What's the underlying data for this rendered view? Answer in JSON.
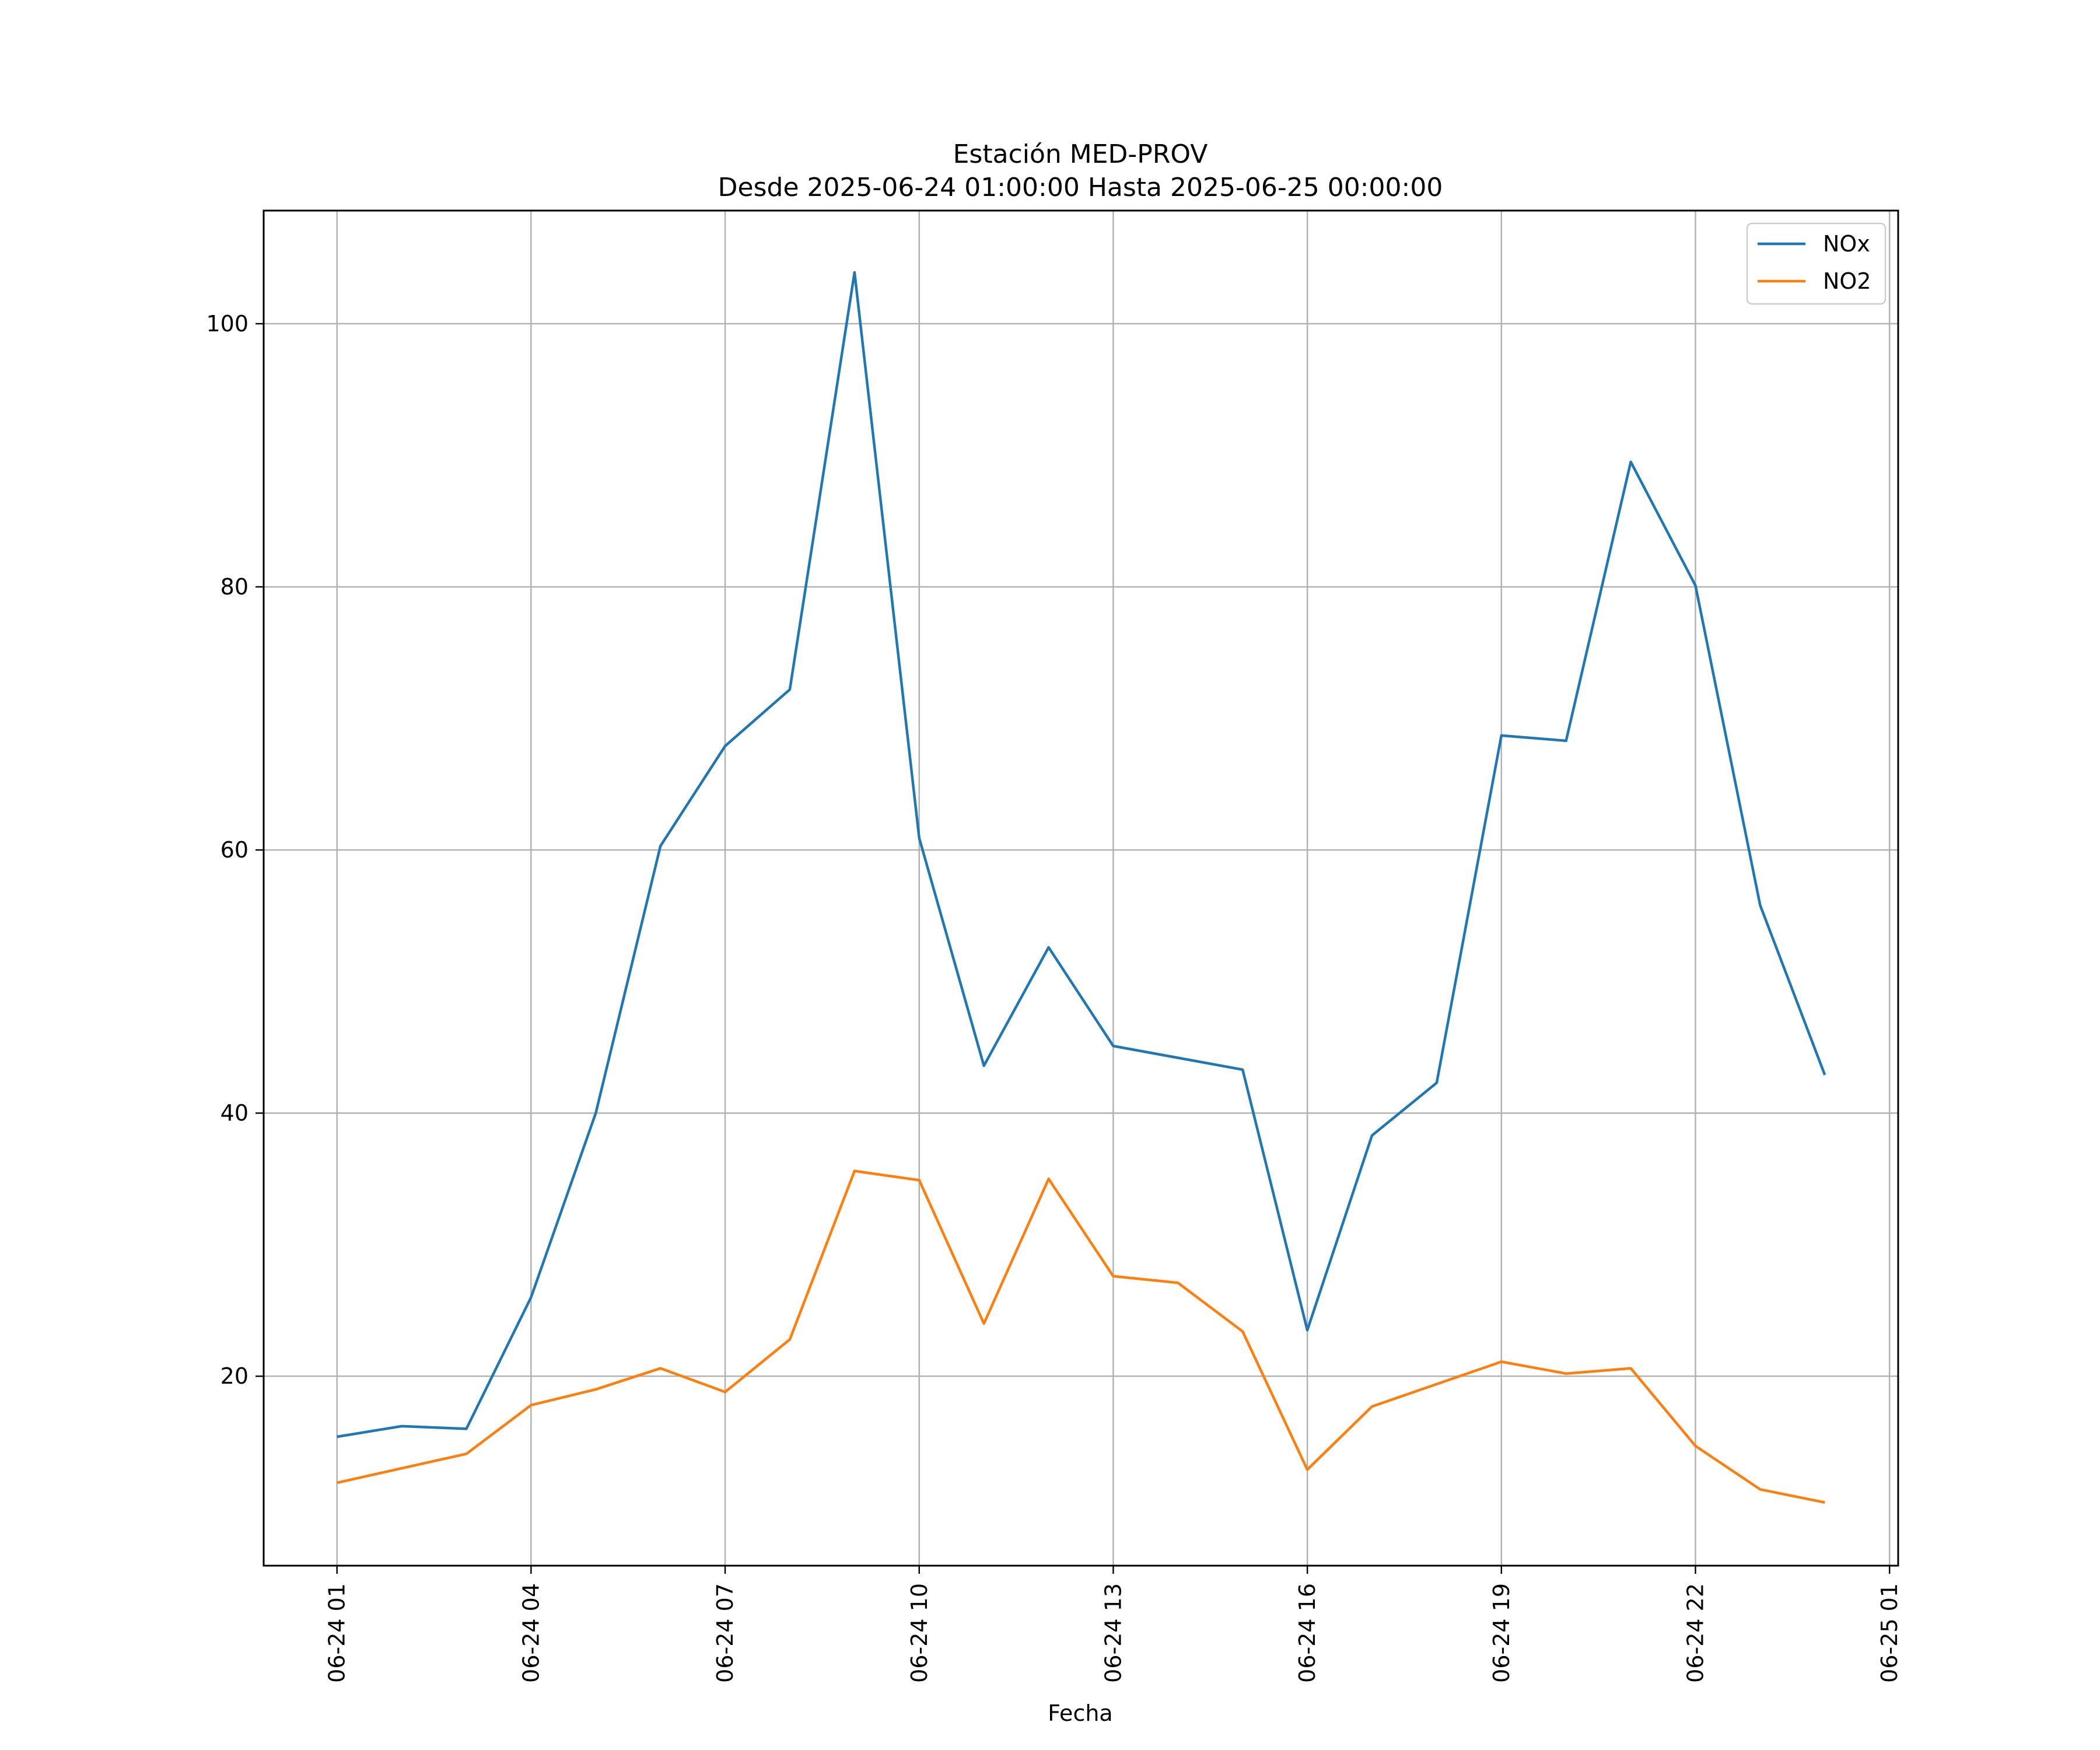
{
  "chart_data": {
    "type": "line",
    "title": "Estación MED-PROV",
    "subtitle": "Desde 2025-06-24 01:00:00 Hasta 2025-06-25 00:00:00",
    "xlabel": "Fecha",
    "ylabel": "",
    "x": [
      "2025-06-24 01:00",
      "2025-06-24 02:00",
      "2025-06-24 03:00",
      "2025-06-24 04:00",
      "2025-06-24 05:00",
      "2025-06-24 06:00",
      "2025-06-24 07:00",
      "2025-06-24 08:00",
      "2025-06-24 09:00",
      "2025-06-24 10:00",
      "2025-06-24 11:00",
      "2025-06-24 12:00",
      "2025-06-24 13:00",
      "2025-06-24 14:00",
      "2025-06-24 15:00",
      "2025-06-24 16:00",
      "2025-06-24 17:00",
      "2025-06-24 18:00",
      "2025-06-24 19:00",
      "2025-06-24 20:00",
      "2025-06-24 21:00",
      "2025-06-24 22:00",
      "2025-06-24 23:00",
      "2025-06-25 00:00"
    ],
    "x_tick_labels": [
      "06-24 01",
      "06-24 04",
      "06-24 07",
      "06-24 10",
      "06-24 13",
      "06-24 16",
      "06-24 19",
      "06-24 22",
      "06-25 01"
    ],
    "x_tick_values": [
      "2025-06-24 01:00",
      "2025-06-24 04:00",
      "2025-06-24 07:00",
      "2025-06-24 10:00",
      "2025-06-24 13:00",
      "2025-06-24 16:00",
      "2025-06-24 19:00",
      "2025-06-24 22:00",
      "2025-06-25 01:00"
    ],
    "xlim": [
      "2025-06-23 23:52",
      "2025-06-25 01:08"
    ],
    "y_ticks": [
      20,
      40,
      60,
      80,
      100
    ],
    "y_tick_labels": [
      "20",
      "40",
      "60",
      "80",
      "100"
    ],
    "ylim": [
      5.6,
      108.6
    ],
    "grid": true,
    "legend_position": "top-right",
    "series": [
      {
        "name": "NOx",
        "color": "#1f77b4",
        "values": [
          15.4,
          16.2,
          16.0,
          26.0,
          40.0,
          60.3,
          67.9,
          72.2,
          103.9,
          60.9,
          43.6,
          52.6,
          45.1,
          44.2,
          43.3,
          23.5,
          38.3,
          42.3,
          68.7,
          68.3,
          89.5,
          80.1,
          55.8,
          42.9
        ]
      },
      {
        "name": "NO2",
        "color": "#ff7f0e",
        "values": [
          11.9,
          13.0,
          14.1,
          17.8,
          19.0,
          20.6,
          18.8,
          22.8,
          35.6,
          34.9,
          24.0,
          35.0,
          27.6,
          27.1,
          23.4,
          12.9,
          17.7,
          19.4,
          21.1,
          20.2,
          20.6,
          14.7,
          11.4,
          10.4
        ]
      }
    ]
  }
}
